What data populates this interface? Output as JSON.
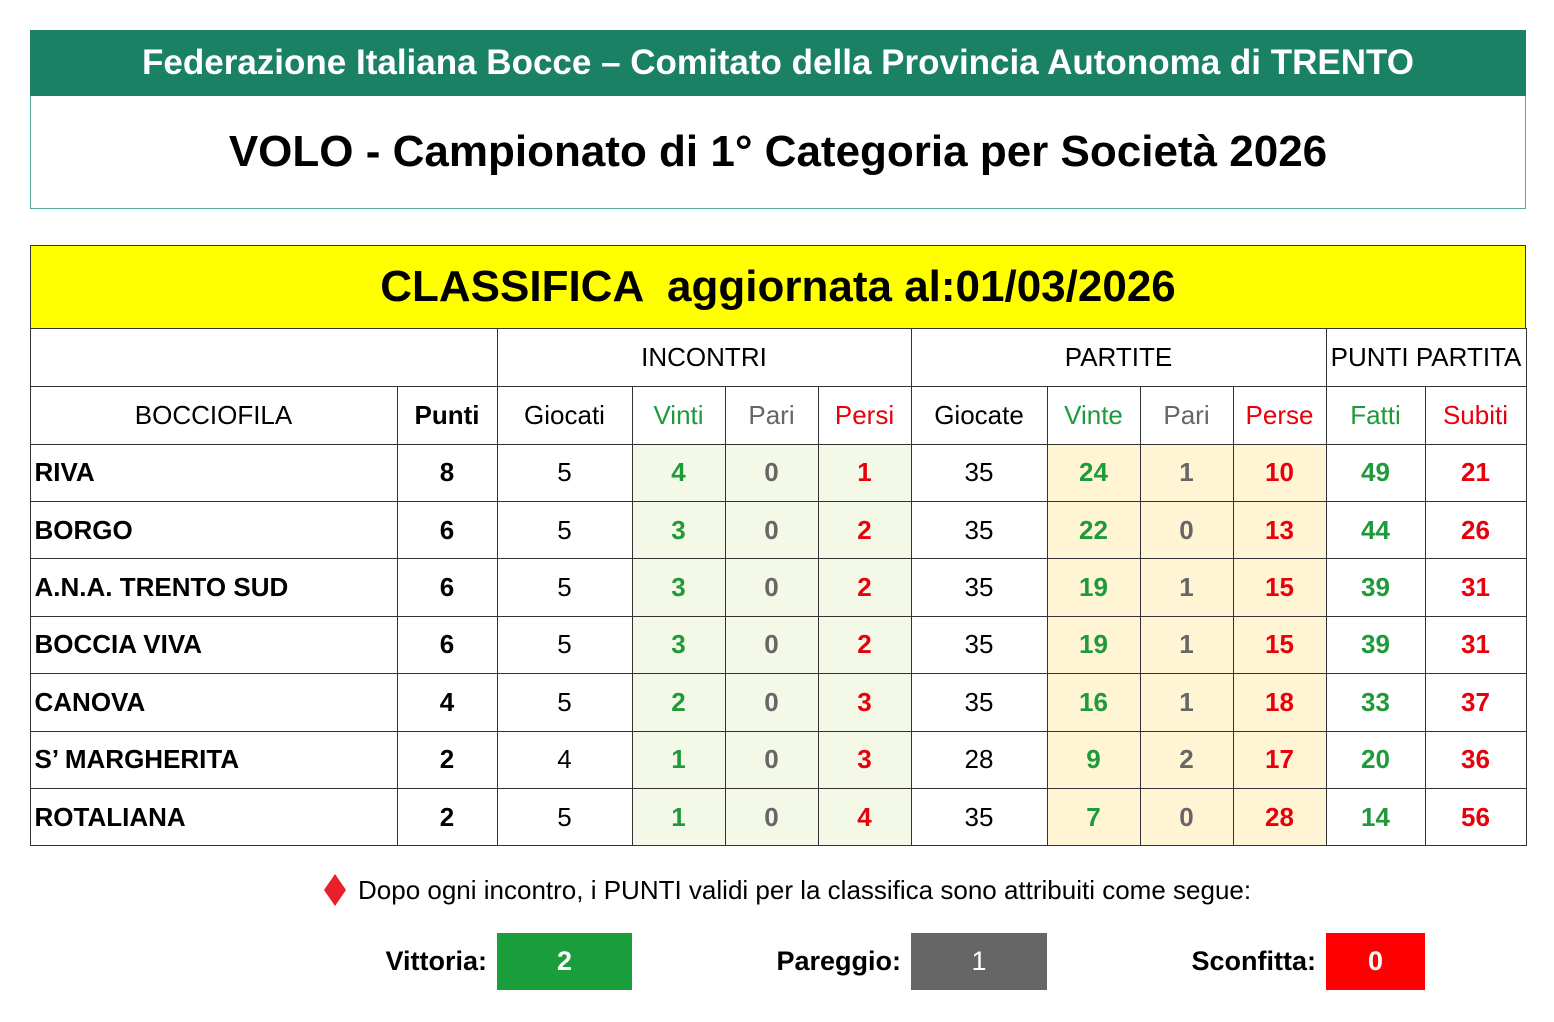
{
  "header": {
    "federation": "Federazione Italiana Bocce – Comitato della Provincia Autonoma di TRENTO",
    "title": "VOLO - Campionato di 1° Categoria per Società 2026"
  },
  "classifica": {
    "label": "CLASSIFICA  aggiornata al:",
    "date": "01/03/2026"
  },
  "table": {
    "groups": [
      "INCONTRI",
      "PARTITE",
      "PUNTI PARTITA"
    ],
    "columns": [
      "BOCCIOFILA",
      "Punti",
      "Giocati",
      "Vinti",
      "Pari",
      "Persi",
      "Giocate",
      "Vinte",
      "Pari",
      "Perse",
      "Fatti",
      "Subiti"
    ],
    "rows": [
      [
        "RIVA",
        8,
        5,
        4,
        0,
        1,
        35,
        24,
        1,
        10,
        49,
        21
      ],
      [
        "BORGO",
        6,
        5,
        3,
        0,
        2,
        35,
        22,
        0,
        13,
        44,
        26
      ],
      [
        "A.N.A. TRENTO SUD",
        6,
        5,
        3,
        0,
        2,
        35,
        19,
        1,
        15,
        39,
        31
      ],
      [
        "BOCCIA VIVA",
        6,
        5,
        3,
        0,
        2,
        35,
        19,
        1,
        15,
        39,
        31
      ],
      [
        "CANOVA",
        4,
        5,
        2,
        0,
        3,
        35,
        16,
        1,
        18,
        33,
        37
      ],
      [
        "S’ MARGHERITA",
        2,
        4,
        1,
        0,
        3,
        28,
        9,
        2,
        17,
        20,
        36
      ],
      [
        "ROTALIANA",
        2,
        5,
        1,
        0,
        4,
        35,
        7,
        0,
        28,
        14,
        56
      ]
    ]
  },
  "note": "Dopo ogni incontro, i PUNTI validi per la classifica sono attribuiti come segue:",
  "scoring": [
    {
      "label": "Vittoria:",
      "points": 2
    },
    {
      "label": "Pareggio:",
      "points": 1
    },
    {
      "label": "Sconfitta:",
      "points": 0
    }
  ]
}
